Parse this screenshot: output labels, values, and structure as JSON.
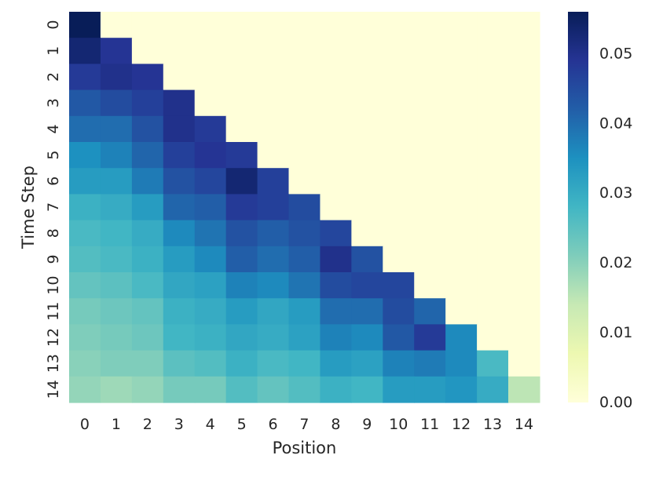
{
  "chart_data": {
    "type": "heatmap",
    "title": "",
    "xlabel": "Position",
    "ylabel": "Time Step",
    "x_categories": [
      "0",
      "1",
      "2",
      "3",
      "4",
      "5",
      "6",
      "7",
      "8",
      "9",
      "10",
      "11",
      "12",
      "13",
      "14"
    ],
    "y_categories": [
      "0",
      "1",
      "2",
      "3",
      "4",
      "5",
      "6",
      "7",
      "8",
      "9",
      "10",
      "11",
      "12",
      "13",
      "14"
    ],
    "colormap": "YlGnBu",
    "vmin": 0.0,
    "vmax": 0.056,
    "colorbar": {
      "ticks": [
        0.0,
        0.01,
        0.02,
        0.03,
        0.04,
        0.05
      ],
      "tick_labels": [
        "0.00",
        "0.01",
        "0.02",
        "0.03",
        "0.04",
        "0.05"
      ]
    },
    "values": [
      [
        0.056,
        0,
        0,
        0,
        0,
        0,
        0,
        0,
        0,
        0,
        0,
        0,
        0,
        0,
        0
      ],
      [
        0.053,
        0.049,
        0,
        0,
        0,
        0,
        0,
        0,
        0,
        0,
        0,
        0,
        0,
        0,
        0
      ],
      [
        0.048,
        0.05,
        0.049,
        0,
        0,
        0,
        0,
        0,
        0,
        0,
        0,
        0,
        0,
        0,
        0
      ],
      [
        0.043,
        0.045,
        0.047,
        0.05,
        0,
        0,
        0,
        0,
        0,
        0,
        0,
        0,
        0,
        0,
        0
      ],
      [
        0.04,
        0.04,
        0.044,
        0.05,
        0.048,
        0,
        0,
        0,
        0,
        0,
        0,
        0,
        0,
        0,
        0
      ],
      [
        0.035,
        0.037,
        0.041,
        0.047,
        0.049,
        0.048,
        0,
        0,
        0,
        0,
        0,
        0,
        0,
        0,
        0
      ],
      [
        0.033,
        0.033,
        0.038,
        0.044,
        0.046,
        0.053,
        0.047,
        0,
        0,
        0,
        0,
        0,
        0,
        0,
        0
      ],
      [
        0.029,
        0.03,
        0.033,
        0.041,
        0.042,
        0.048,
        0.047,
        0.045,
        0,
        0,
        0,
        0,
        0,
        0,
        0
      ],
      [
        0.027,
        0.028,
        0.03,
        0.036,
        0.039,
        0.044,
        0.042,
        0.044,
        0.046,
        0,
        0,
        0,
        0,
        0,
        0
      ],
      [
        0.026,
        0.027,
        0.029,
        0.033,
        0.036,
        0.042,
        0.04,
        0.042,
        0.05,
        0.044,
        0,
        0,
        0,
        0,
        0
      ],
      [
        0.024,
        0.025,
        0.027,
        0.031,
        0.032,
        0.037,
        0.036,
        0.039,
        0.045,
        0.046,
        0.046,
        0,
        0,
        0,
        0
      ],
      [
        0.022,
        0.023,
        0.024,
        0.029,
        0.03,
        0.033,
        0.031,
        0.033,
        0.04,
        0.04,
        0.045,
        0.041,
        0,
        0,
        0
      ],
      [
        0.021,
        0.022,
        0.023,
        0.028,
        0.029,
        0.031,
        0.03,
        0.032,
        0.037,
        0.036,
        0.043,
        0.048,
        0.036,
        0,
        0
      ],
      [
        0.02,
        0.021,
        0.021,
        0.025,
        0.026,
        0.029,
        0.027,
        0.028,
        0.033,
        0.032,
        0.037,
        0.038,
        0.036,
        0.027,
        0
      ],
      [
        0.019,
        0.018,
        0.019,
        0.022,
        0.022,
        0.026,
        0.024,
        0.026,
        0.029,
        0.028,
        0.033,
        0.033,
        0.034,
        0.03,
        0.015
      ]
    ]
  }
}
